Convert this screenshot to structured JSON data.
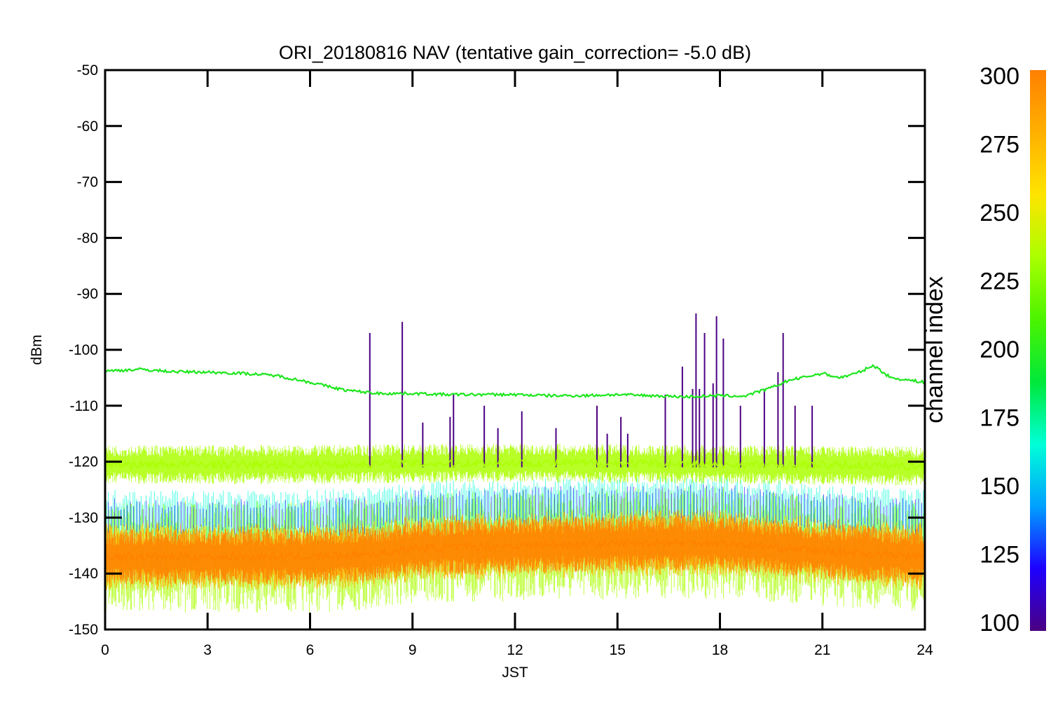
{
  "chart_data": {
    "type": "line",
    "title": "ORI_20180816 NAV (tentative gain_correction= -5.0 dB)",
    "xlabel": "JST",
    "ylabel": "dBm",
    "xlim": [
      0,
      24
    ],
    "ylim": [
      -150,
      -50
    ],
    "xticks": [
      0,
      3,
      6,
      9,
      12,
      15,
      18,
      21,
      24
    ],
    "yticks": [
      -50,
      -60,
      -70,
      -80,
      -90,
      -100,
      -110,
      -120,
      -130,
      -140,
      -150
    ],
    "grid": false,
    "colorbar": {
      "label": "channel index",
      "range": [
        100,
        300
      ],
      "ticks": [
        300,
        275,
        250,
        225,
        200,
        175,
        150,
        125,
        100
      ],
      "colors": [
        "#4b0082",
        "#1e00ff",
        "#00a0ff",
        "#00ffd8",
        "#00e83a",
        "#4cf400",
        "#aaff00",
        "#ffe400",
        "#ffb000",
        "#ff8000"
      ]
    },
    "series": [
      {
        "color": "#1ee61e",
        "x": [
          0,
          1,
          2,
          3,
          4,
          5,
          6,
          7,
          8,
          9,
          10,
          11,
          12,
          13,
          14,
          15,
          16,
          17,
          18,
          18.7,
          19.5,
          20,
          21,
          21.5,
          22,
          22.5,
          23,
          24
        ],
        "values": [
          -103.8,
          -103.5,
          -103.9,
          -104,
          -104.2,
          -104.6,
          -105.8,
          -107.2,
          -107.8,
          -107.8,
          -108,
          -108,
          -108,
          -108.2,
          -108.2,
          -108,
          -108.2,
          -108.4,
          -108.2,
          -108.3,
          -106.8,
          -105.5,
          -104.2,
          -105,
          -104.2,
          -102.8,
          -105,
          -105.8
        ]
      },
      {
        "color": "#aaff00",
        "x": [
          0,
          6,
          12,
          18,
          24
        ],
        "values": [
          -120.5,
          -120.5,
          -120.2,
          -120.5,
          -120.8
        ]
      },
      {
        "color": "#ff8000",
        "x": [
          0,
          6,
          8,
          9,
          12,
          16,
          18,
          21,
          24
        ],
        "values": [
          -137,
          -137,
          -136.5,
          -135.5,
          -135,
          -134.5,
          -134.5,
          -136,
          -137
        ]
      }
    ],
    "spikes": {
      "color": "#4b0082",
      "x": [
        7.75,
        8.7,
        9.3,
        10.2,
        10.1,
        11.1,
        11.5,
        12.2,
        13.2,
        14.4,
        14.7,
        15.1,
        15.3,
        16.4,
        16.9,
        17.2,
        17.3,
        17.4,
        17.55,
        17.8,
        17.9,
        18.1,
        18.6,
        19.3,
        19.7,
        19.85,
        20.2,
        20.7
      ],
      "peaks": [
        -97,
        -95,
        -113,
        -108,
        -112,
        -110,
        -114,
        -111,
        -114,
        -110,
        -115,
        -112,
        -115,
        -108,
        -103,
        -107,
        -93.5,
        -107,
        -97,
        -106,
        -94,
        -98,
        -110,
        -107,
        -104,
        -97,
        -110,
        -110
      ]
    }
  }
}
